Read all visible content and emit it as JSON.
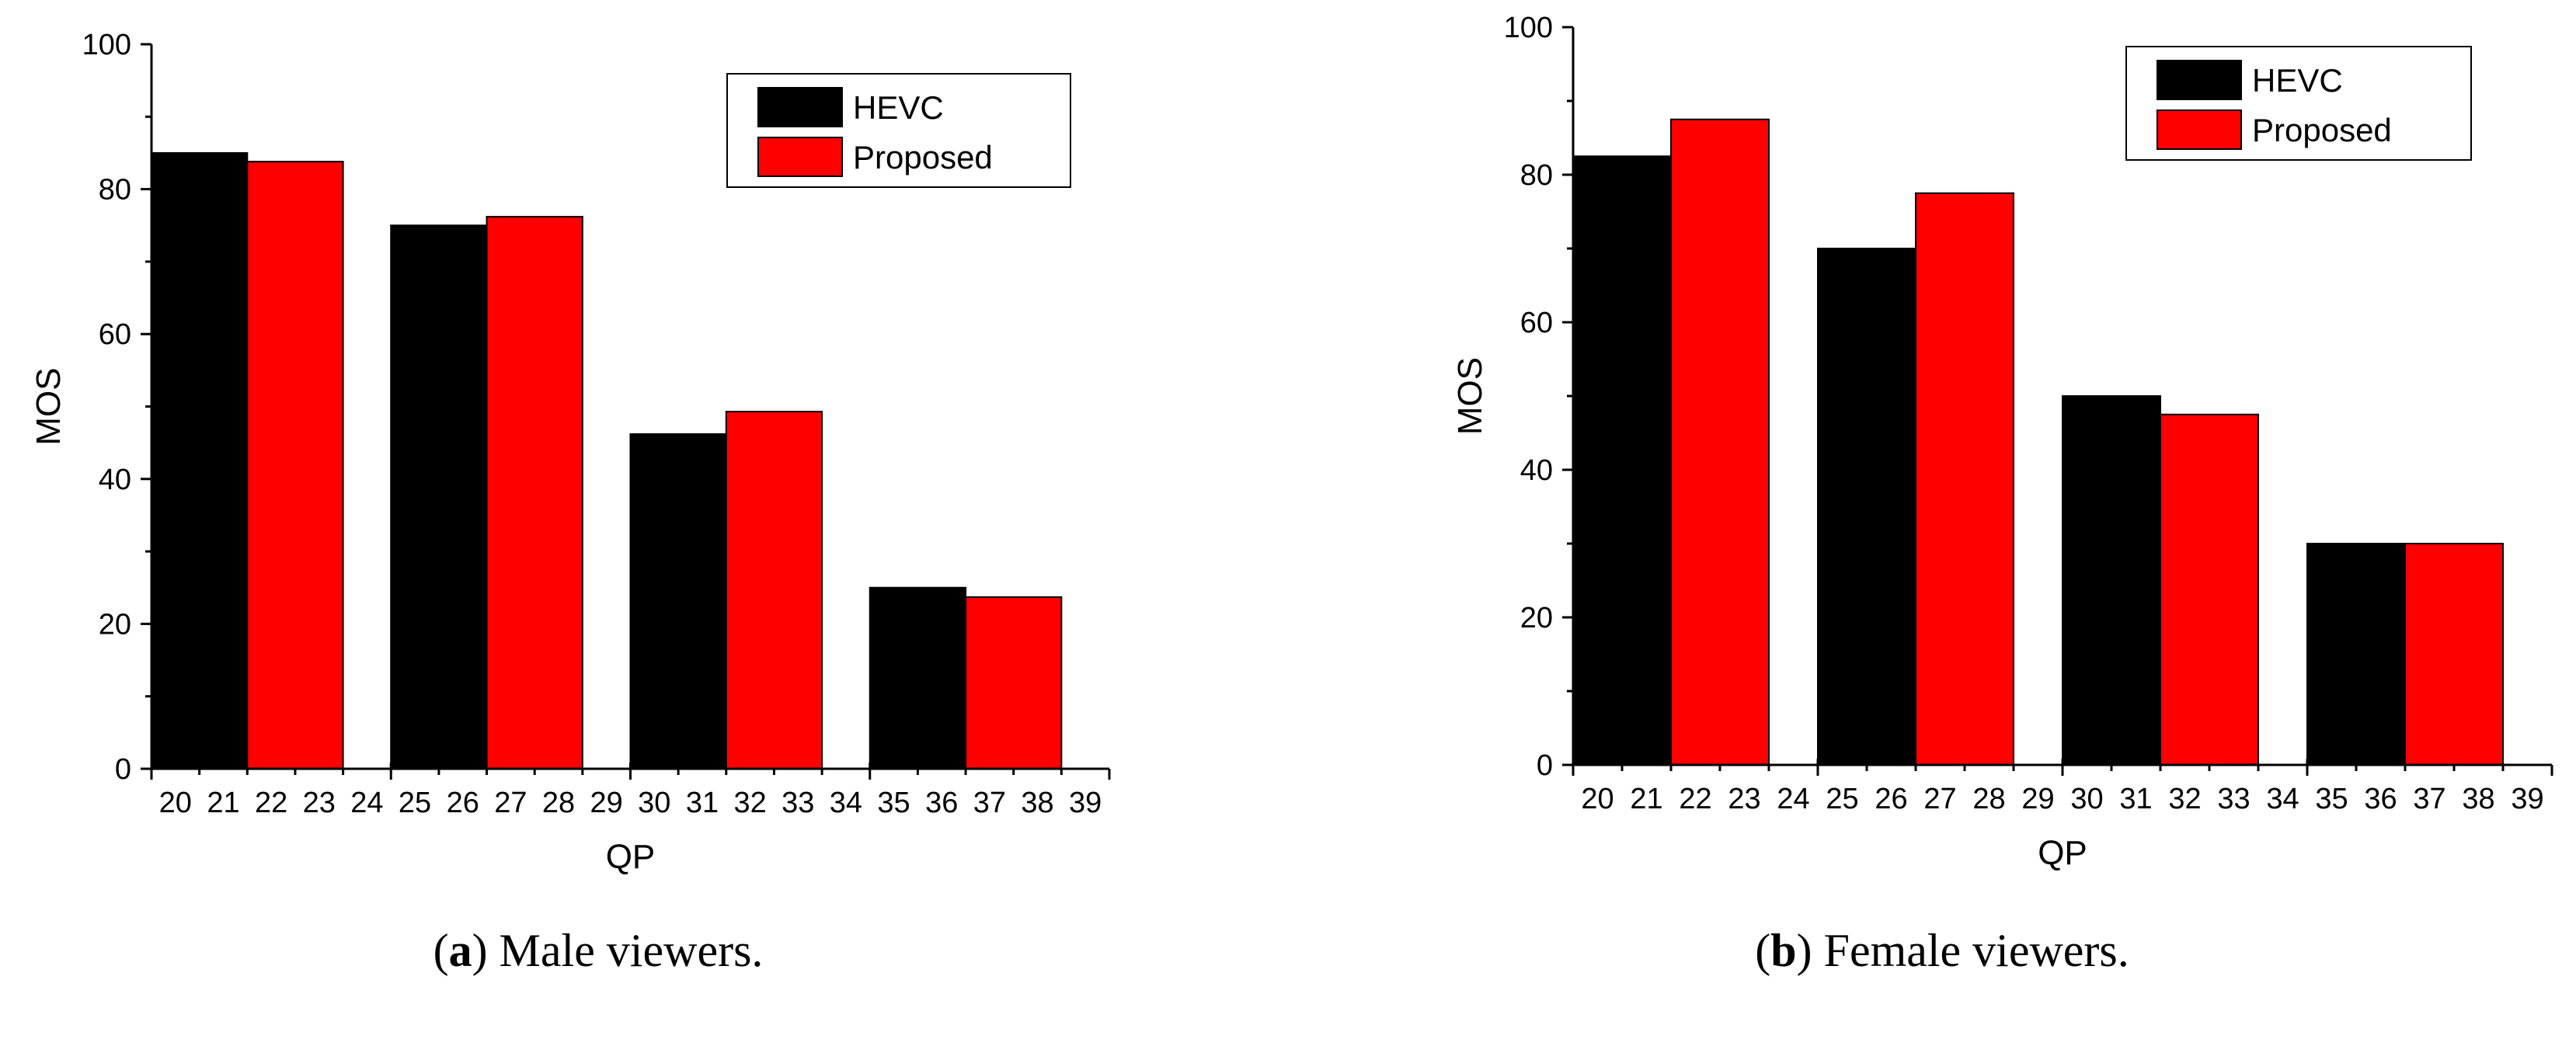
{
  "chart_data": [
    {
      "type": "bar",
      "panel_letter": "a",
      "caption_text": "Male viewers.",
      "xlabel": "QP",
      "ylabel": "MOS",
      "ylim": [
        0,
        100
      ],
      "y_ticks": [
        0,
        20,
        40,
        60,
        80,
        100
      ],
      "x_tick_labels": [
        "20",
        "21",
        "22",
        "23",
        "24",
        "25",
        "26",
        "27",
        "28",
        "29",
        "30",
        "31",
        "32",
        "33",
        "34",
        "35",
        "36",
        "37",
        "38",
        "39"
      ],
      "series": [
        {
          "name": "HEVC",
          "color": "#000000",
          "values": [
            85,
            75,
            46.2,
            25
          ]
        },
        {
          "name": "Proposed",
          "color": "#ff0000",
          "values": [
            83.8,
            76.2,
            49.3,
            23.7
          ]
        }
      ],
      "legend": [
        "HEVC",
        "Proposed"
      ],
      "legend_position": "top-right"
    },
    {
      "type": "bar",
      "panel_letter": "b",
      "caption_text": "Female viewers.",
      "xlabel": "QP",
      "ylabel": "MOS",
      "ylim": [
        0,
        100
      ],
      "y_ticks": [
        0,
        20,
        40,
        60,
        80,
        100
      ],
      "x_tick_labels": [
        "20",
        "21",
        "22",
        "23",
        "24",
        "25",
        "26",
        "27",
        "28",
        "29",
        "30",
        "31",
        "32",
        "33",
        "34",
        "35",
        "36",
        "37",
        "38",
        "39"
      ],
      "series": [
        {
          "name": "HEVC",
          "color": "#000000",
          "values": [
            82.5,
            70,
            50,
            30
          ]
        },
        {
          "name": "Proposed",
          "color": "#ff0000",
          "values": [
            87.5,
            77.5,
            47.5,
            30
          ]
        }
      ],
      "legend": [
        "HEVC",
        "Proposed"
      ],
      "legend_position": "top-right"
    }
  ]
}
